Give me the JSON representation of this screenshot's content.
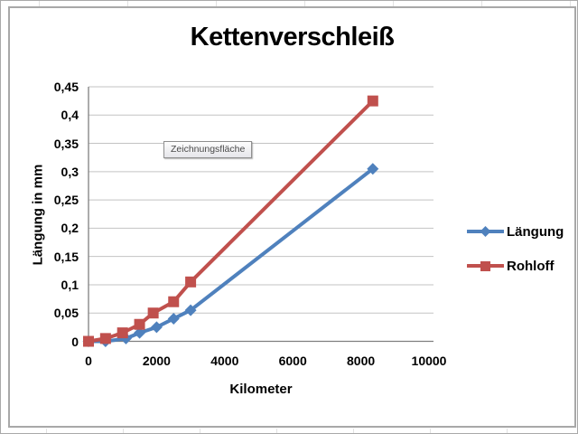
{
  "tooltip": "Zeichnungsfläche",
  "chart_data": {
    "type": "line",
    "title": "Kettenverschleiß",
    "xlabel": "Kilometer",
    "ylabel": "Längung in mm",
    "xlim": [
      0,
      10000
    ],
    "ylim": [
      0,
      0.45
    ],
    "grid": "horizontal",
    "legend_position": "right",
    "x_ticks": [
      {
        "v": 0,
        "label": "0"
      },
      {
        "v": 2000,
        "label": "2000"
      },
      {
        "v": 4000,
        "label": "4000"
      },
      {
        "v": 6000,
        "label": "6000"
      },
      {
        "v": 8000,
        "label": "8000"
      },
      {
        "v": 10000,
        "label": "10000"
      }
    ],
    "y_ticks": [
      {
        "v": 0,
        "label": "0"
      },
      {
        "v": 0.05,
        "label": "0,05"
      },
      {
        "v": 0.1,
        "label": "0,1"
      },
      {
        "v": 0.15,
        "label": "0,15"
      },
      {
        "v": 0.2,
        "label": "0,2"
      },
      {
        "v": 0.25,
        "label": "0,25"
      },
      {
        "v": 0.3,
        "label": "0,3"
      },
      {
        "v": 0.35,
        "label": "0,35"
      },
      {
        "v": 0.4,
        "label": "0,4"
      },
      {
        "v": 0.45,
        "label": "0,45"
      }
    ],
    "series": [
      {
        "name": "Längung",
        "color": "#4F81BD",
        "marker": "diamond",
        "points": [
          [
            0,
            0
          ],
          [
            500,
            0
          ],
          [
            1100,
            0.005
          ],
          [
            1500,
            0.015
          ],
          [
            2000,
            0.025
          ],
          [
            2500,
            0.04
          ],
          [
            3000,
            0.055
          ],
          [
            8350,
            0.305
          ]
        ]
      },
      {
        "name": "Rohloff",
        "color": "#C0504D",
        "marker": "square",
        "points": [
          [
            0,
            0
          ],
          [
            500,
            0.005
          ],
          [
            1000,
            0.015
          ],
          [
            1500,
            0.03
          ],
          [
            1900,
            0.05
          ],
          [
            2500,
            0.07
          ],
          [
            3000,
            0.105
          ],
          [
            8350,
            0.425
          ]
        ]
      }
    ],
    "colors": {
      "gridline": "#c3c3c3",
      "axis": "#7f7f7f",
      "text": "#000000"
    }
  }
}
